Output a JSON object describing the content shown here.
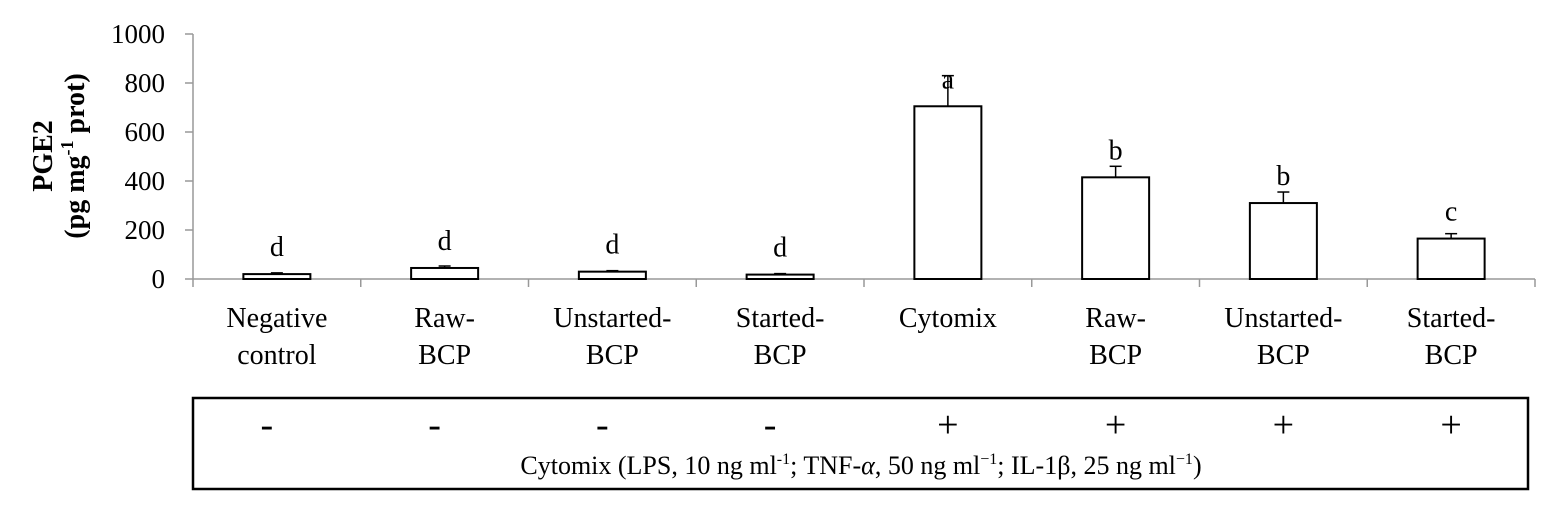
{
  "chart_data": {
    "type": "bar",
    "ylabel": {
      "line1": "PGE2",
      "line2_pre": "(pg mg",
      "line2_sup": "-1",
      "line2_post": " prot)"
    },
    "ylim": [
      0,
      1000
    ],
    "yticks": [
      "0",
      "200",
      "400",
      "600",
      "800",
      "1000"
    ],
    "grid": false,
    "categories": [
      {
        "line1": "Negative",
        "line2": "control"
      },
      {
        "line1": "Raw-",
        "line2": "BCP"
      },
      {
        "line1": "Unstarted-",
        "line2": "BCP"
      },
      {
        "line1": "Started-",
        "line2": "BCP"
      },
      {
        "line1": "Cytomix",
        "line2": ""
      },
      {
        "line1": "Raw-",
        "line2": "BCP"
      },
      {
        "line1": "Unstarted-",
        "line2": "BCP"
      },
      {
        "line1": "Started-",
        "line2": "BCP"
      }
    ],
    "values": [
      20,
      45,
      30,
      18,
      705,
      415,
      310,
      165
    ],
    "errors": [
      5,
      8,
      4,
      4,
      125,
      45,
      45,
      20
    ],
    "significance": [
      "d",
      "d",
      "d",
      "d",
      "a",
      "b",
      "b",
      "c"
    ],
    "bar_fill": "#ffffff",
    "bar_stroke": "#000000",
    "treatment": {
      "signs": [
        "-",
        "-",
        "-",
        "-",
        "+",
        "+",
        "+",
        "+"
      ],
      "caption": {
        "p1": "Cytomix (LPS, 10 ng ml",
        "s1": "-1",
        "p2": "; TNF-",
        "alpha": "α",
        "p3": ", 50 ng ml",
        "s2": "−1",
        "p4": "; IL-1β, 25 ng ml",
        "s3": "−1",
        "p5": ")"
      }
    }
  }
}
